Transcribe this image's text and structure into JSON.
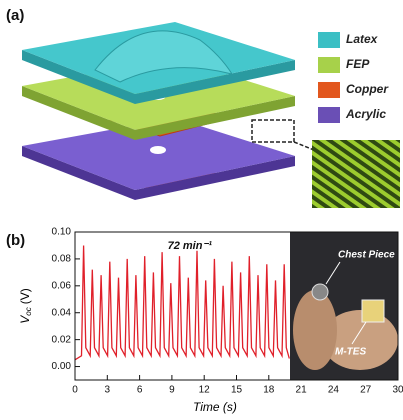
{
  "panel_a": {
    "label": "(a)",
    "legend": [
      "Latex",
      "FEP",
      "Copper",
      "Acrylic"
    ]
  },
  "photo": {
    "labels": [
      "Chest Piece",
      "M-TES"
    ]
  },
  "chart_data": {
    "type": "line",
    "panel_label": "(b)",
    "annotation": "72 min⁻¹",
    "y_label": {
      "main": "V",
      "sub": "oc",
      "unit": "(V)"
    },
    "x_label": "Time (s)",
    "xlim": [
      0,
      30
    ],
    "xticks": [
      0,
      3,
      6,
      9,
      12,
      15,
      18,
      21,
      24,
      27,
      30
    ],
    "ylim": [
      -0.01,
      0.1
    ],
    "yticks": [
      {
        "value": 0,
        "label": "0.00"
      },
      0.02,
      0.04,
      0.06,
      0.08,
      {
        "value": 0.1,
        "label": "0.10"
      }
    ],
    "x": [
      0,
      0.6,
      0.8,
      1.0,
      1.41,
      1.61,
      1.81,
      2.22,
      2.42,
      2.62,
      3.03,
      3.23,
      3.43,
      3.84,
      4.04,
      4.24,
      4.65,
      4.85,
      5.05,
      5.46,
      5.66,
      5.86,
      6.27,
      6.47,
      6.67,
      7.08,
      7.28,
      7.48,
      7.89,
      8.09,
      8.29,
      8.7,
      8.9,
      9.1,
      9.51,
      9.71,
      9.91,
      10.32,
      10.52,
      10.72,
      11.13,
      11.33,
      11.53,
      11.94,
      12.14,
      12.34,
      12.75,
      12.95,
      13.15,
      13.56,
      13.76,
      13.96,
      14.37,
      14.57,
      14.77,
      15.18,
      15.38,
      15.58,
      15.99,
      16.19,
      16.39,
      16.8,
      17.0,
      17.2,
      17.61,
      17.81,
      18.01,
      18.42,
      18.62,
      18.82,
      19.23,
      19.43,
      19.63,
      19.9
    ],
    "series": [
      {
        "color": "#e0202a",
        "values": [
          0.005,
          0.008,
          0.09,
          0.014,
          0.008,
          0.072,
          0.014,
          0.008,
          0.068,
          0.014,
          0.008,
          0.078,
          0.014,
          0.008,
          0.066,
          0.014,
          0.008,
          0.08,
          0.014,
          0.008,
          0.068,
          0.014,
          0.008,
          0.082,
          0.014,
          0.008,
          0.07,
          0.014,
          0.008,
          0.085,
          0.014,
          0.008,
          0.062,
          0.014,
          0.008,
          0.082,
          0.014,
          0.008,
          0.066,
          0.014,
          0.008,
          0.086,
          0.014,
          0.008,
          0.064,
          0.014,
          0.008,
          0.08,
          0.014,
          0.008,
          0.06,
          0.014,
          0.008,
          0.078,
          0.014,
          0.008,
          0.07,
          0.014,
          0.008,
          0.082,
          0.014,
          0.008,
          0.068,
          0.014,
          0.008,
          0.076,
          0.014,
          0.008,
          0.064,
          0.014,
          0.008,
          0.076,
          0.014,
          0.006
        ]
      }
    ]
  }
}
